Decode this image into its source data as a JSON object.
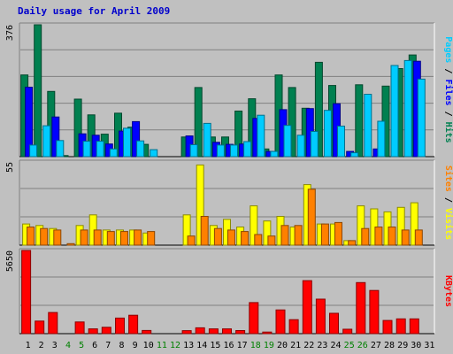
{
  "chart_data": {
    "type": "bar",
    "title": "Daily usage for April 2009",
    "days": [
      "1",
      "2",
      "3",
      "4",
      "5",
      "6",
      "7",
      "8",
      "9",
      "10",
      "11",
      "12",
      "13",
      "14",
      "15",
      "16",
      "17",
      "18",
      "19",
      "20",
      "21",
      "22",
      "23",
      "24",
      "25",
      "26",
      "27",
      "28",
      "29",
      "30",
      "31"
    ],
    "weekend_days": [
      "4",
      "5",
      "11",
      "12",
      "18",
      "19",
      "25",
      "26"
    ],
    "panels": [
      {
        "id": "hits_files_pages",
        "ymax_label": "376",
        "ylim": [
          0,
          376
        ],
        "labels": [
          {
            "text": "Pages",
            "color": "#00ccff"
          },
          {
            "text": " / ",
            "color": "#000000"
          },
          {
            "text": "Files",
            "color": "#0000ff"
          },
          {
            "text": " / ",
            "color": "#000000"
          },
          {
            "text": "Hits",
            "color": "#008050"
          }
        ],
        "series": [
          {
            "name": "Hits",
            "color": "#008050",
            "values": [
              233,
              376,
              186,
              3,
              164,
              119,
              64,
              124,
              84,
              35,
              0,
              0,
              56,
              197,
              56,
              56,
              130,
              165,
              22,
              233,
              197,
              138,
              269,
              203,
              0,
              205,
              0,
              201,
              251,
              290,
              0
            ]
          },
          {
            "name": "Files",
            "color": "#0000ff",
            "values": [
              198,
              0,
              113,
              0,
              65,
              61,
              36,
              73,
              100,
              0,
              0,
              0,
              59,
              0,
              41,
              35,
              36,
              109,
              15,
              134,
              0,
              137,
              0,
              151,
              15,
              0,
              22,
              0,
              0,
              272,
              0
            ]
          },
          {
            "name": "Pages",
            "color": "#00ccff",
            "values": [
              33,
              88,
              46,
              0,
              44,
              44,
              22,
              81,
              45,
              20,
              0,
              0,
              34,
              95,
              33,
              33,
              43,
              118,
              15,
              89,
              61,
              72,
              132,
              87,
              11,
              178,
              101,
              260,
              274,
              221,
              0
            ]
          }
        ]
      },
      {
        "id": "visits_sites",
        "ymax_label": "55",
        "ylim": [
          0,
          55
        ],
        "labels": [
          {
            "text": "Sites",
            "color": "#ff8000"
          },
          {
            "text": " / ",
            "color": "#000000"
          },
          {
            "text": "Visits",
            "color": "#ffff00"
          }
        ],
        "series": [
          {
            "name": "Visits",
            "color": "#ffff00",
            "values": [
              14,
              13,
              11,
              0,
              13,
              20,
              10,
              10,
              10,
              8,
              0,
              0,
              20,
              53,
              13,
              17,
              12,
              26,
              16,
              19,
              12,
              40,
              14,
              14,
              3,
              26,
              24,
              22,
              25,
              28,
              0
            ]
          },
          {
            "name": "Sites",
            "color": "#ff8000",
            "values": [
              12,
              11,
              10,
              1,
              10,
              10,
              9,
              9,
              10,
              9,
              0,
              0,
              6,
              19,
              11,
              10,
              9,
              7,
              6,
              13,
              13,
              37,
              14,
              15,
              3,
              11,
              12,
              12,
              10,
              10,
              0
            ]
          }
        ]
      },
      {
        "id": "kbytes",
        "ymax_label": "5650",
        "ylim": [
          0,
          5650
        ],
        "labels": [
          {
            "text": "KBytes",
            "color": "#ff0000"
          }
        ],
        "series": [
          {
            "name": "KBytes",
            "color": "#ff0000",
            "values": [
              5650,
              851,
              1436,
              0,
              795,
              322,
              435,
              1057,
              1249,
              215,
              0,
              0,
              205,
              394,
              327,
              327,
              210,
              2109,
              108,
              1612,
              948,
              3599,
              2346,
              1382,
              298,
              3471,
              2936,
              894,
              1003,
              1003,
              0
            ]
          }
        ]
      }
    ]
  }
}
